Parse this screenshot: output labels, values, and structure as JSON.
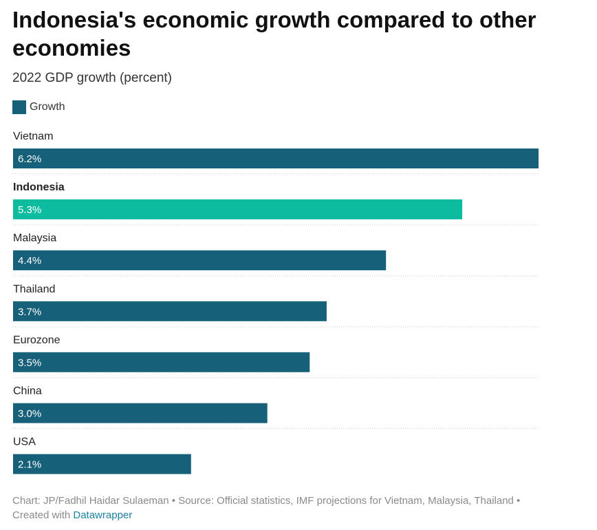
{
  "header": {
    "title": "Indonesia's economic growth compared to other economies",
    "subtitle": "2022 GDP growth (percent)"
  },
  "legend": {
    "label": "Growth",
    "color": "#17607a"
  },
  "colors": {
    "bar": "#17607a",
    "highlight": "#0dbc9f",
    "divider": "#cccccc"
  },
  "chart_data": {
    "type": "bar",
    "orientation": "horizontal",
    "categories": [
      "Vietnam",
      "Indonesia",
      "Malaysia",
      "Thailand",
      "Eurozone",
      "China",
      "USA"
    ],
    "values": [
      6.2,
      5.3,
      4.4,
      3.7,
      3.5,
      3.0,
      2.1
    ],
    "value_labels": [
      "6.2%",
      "5.3%",
      "4.4%",
      "3.7%",
      "3.5%",
      "3.0%",
      "2.1%"
    ],
    "highlighted": "Indonesia",
    "xlim": [
      0,
      6.2
    ],
    "series": [
      {
        "name": "Growth",
        "values": [
          6.2,
          5.3,
          4.4,
          3.7,
          3.5,
          3.0,
          2.1
        ]
      }
    ]
  },
  "footer": {
    "text": "Chart: JP/Fadhil Haidar Sulaeman • Source: Official statistics, IMF projections for Vietnam, Malaysia, Thailand • Created with ",
    "link": "Datawrapper"
  }
}
